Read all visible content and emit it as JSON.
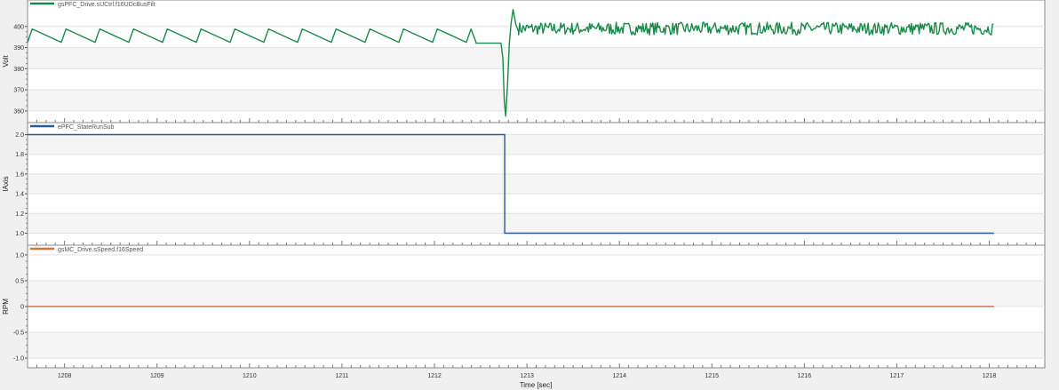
{
  "chart_data": [
    {
      "type": "line",
      "legend": {
        "label": "gsPFC_Drive.sUCtrl.f16UDcBusFilt",
        "color": "#1a8a4a"
      },
      "ylabel": "Volt",
      "ylim": [
        357,
        410
      ],
      "yticks": [
        360,
        370,
        380,
        390,
        400
      ],
      "series": [
        {
          "name": "gsPFC_Drive.sUCtrl.f16UDcBusFilt",
          "color": "#1a8a4a",
          "sawtooth": {
            "x_start": 1207.6,
            "x_end": 1212.45,
            "period": 0.365,
            "min": 392.5,
            "max": 398.8
          },
          "points": [
            [
              1212.45,
              392.1
            ],
            [
              1212.72,
              392.1
            ],
            [
              1212.74,
              385.0
            ],
            [
              1212.755,
              365.0
            ],
            [
              1212.77,
              357.5
            ],
            [
              1212.79,
              372.0
            ],
            [
              1212.81,
              392.0
            ],
            [
              1212.83,
              402.0
            ],
            [
              1212.85,
              408.0
            ],
            [
              1212.88,
              401.0
            ],
            [
              1212.91,
              397.5
            ]
          ],
          "noise": {
            "x_start": 1212.91,
            "x_end": 1218.05,
            "center": 399.0,
            "amplitude": 3.0
          }
        }
      ]
    },
    {
      "type": "line",
      "legend": {
        "label": "ePFC_StateRunSub",
        "color": "#2a5a96"
      },
      "ylabel": "IAxis",
      "ylim": [
        0.95,
        2.05
      ],
      "yticks": [
        "1.0",
        "1.2",
        "1.4",
        "1.6",
        "1.8",
        "2.0"
      ],
      "series": [
        {
          "name": "ePFC_StateRunSub",
          "color": "#2a5a96",
          "points": [
            [
              1207.6,
              2.0
            ],
            [
              1212.76,
              2.0
            ],
            [
              1212.76,
              1.0
            ],
            [
              1218.05,
              1.0
            ]
          ]
        }
      ]
    },
    {
      "type": "line",
      "legend": {
        "label": "gsMC_Drive.sSpeed.f16Speed",
        "color": "#d2763e"
      },
      "ylabel": "RPM",
      "ylim": [
        -1.05,
        1.05
      ],
      "yticks": [
        "-1.0",
        "-0.5",
        "0",
        "0.5",
        "1.0"
      ],
      "series": [
        {
          "name": "gsMC_Drive.sSpeed.f16Speed",
          "color": "#d2763e",
          "points": [
            [
              1207.6,
              0
            ],
            [
              1218.05,
              0
            ]
          ]
        }
      ]
    }
  ],
  "x_axis": {
    "label": "Time [sec]",
    "xlim": [
      1207.6,
      1218.6
    ],
    "ticks": [
      "1208",
      "1209",
      "1210",
      "1211",
      "1212",
      "1213",
      "1214",
      "1215",
      "1216",
      "1217",
      "1218"
    ]
  }
}
